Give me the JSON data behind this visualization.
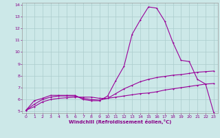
{
  "background_color": "#cce8e8",
  "grid_color": "#aacccc",
  "line_color": "#990099",
  "marker_color": "#990099",
  "xlabel": "Windchill (Refroidissement éolien,°C)",
  "xlim": [
    0,
    23
  ],
  "ylim": [
    5,
    14
  ],
  "yticks": [
    5,
    6,
    7,
    8,
    9,
    10,
    11,
    12,
    13,
    14
  ],
  "xticks": [
    0,
    1,
    2,
    3,
    4,
    5,
    6,
    7,
    8,
    9,
    10,
    11,
    12,
    13,
    14,
    15,
    16,
    17,
    18,
    19,
    20,
    21,
    22,
    23
  ],
  "series1_x": [
    0,
    1,
    2,
    3,
    4,
    5,
    6,
    7,
    8,
    9,
    10,
    11,
    12,
    13,
    14,
    15,
    16,
    17,
    18,
    19,
    20,
    21,
    22,
    23
  ],
  "series1_y": [
    5.1,
    5.9,
    6.1,
    6.35,
    6.35,
    6.35,
    6.35,
    6.0,
    5.9,
    5.9,
    6.3,
    7.6,
    8.8,
    11.5,
    12.7,
    13.8,
    13.7,
    12.6,
    10.8,
    9.3,
    9.2,
    7.7,
    7.3,
    4.9
  ],
  "series2_x": [
    0,
    1,
    2,
    3,
    4,
    5,
    6,
    7,
    8,
    9,
    10,
    11,
    12,
    13,
    14,
    15,
    16,
    17,
    18,
    19,
    20,
    21,
    22,
    23
  ],
  "series2_y": [
    5.1,
    5.6,
    6.0,
    6.2,
    6.3,
    6.3,
    6.3,
    6.1,
    6.0,
    5.95,
    6.1,
    6.5,
    6.9,
    7.2,
    7.5,
    7.7,
    7.85,
    7.95,
    8.05,
    8.1,
    8.2,
    8.3,
    8.35,
    8.4
  ],
  "series3_x": [
    0,
    1,
    2,
    3,
    4,
    5,
    6,
    7,
    8,
    9,
    10,
    11,
    12,
    13,
    14,
    15,
    16,
    17,
    18,
    19,
    20,
    21,
    22,
    23
  ],
  "series3_y": [
    5.1,
    5.4,
    5.8,
    6.0,
    6.1,
    6.15,
    6.2,
    6.2,
    6.2,
    6.1,
    6.1,
    6.2,
    6.3,
    6.4,
    6.5,
    6.55,
    6.65,
    6.8,
    6.9,
    7.0,
    7.1,
    7.2,
    7.3,
    7.35
  ],
  "tick_color": "#880088",
  "tick_fontsize": 4.5,
  "xlabel_fontsize": 5.0,
  "linewidth": 0.8,
  "markersize": 2.0
}
